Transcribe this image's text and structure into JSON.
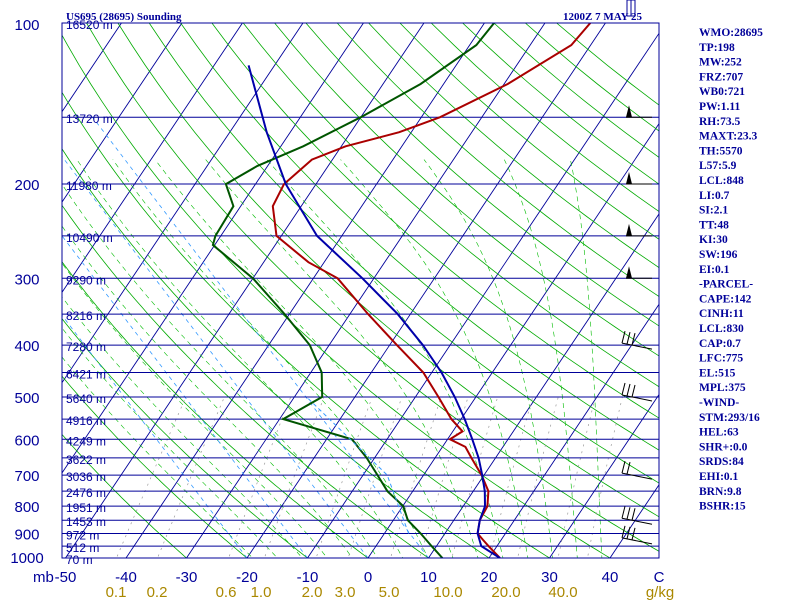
{
  "header": {
    "station": "US695 (28695) Sounding",
    "time": "1200Z  7 MAY 25"
  },
  "colors": {
    "frame": "#000099",
    "isobar": "#000099",
    "isotherm": "#000099",
    "dry_adiabat": "#00aa00",
    "moist_adiabat": "#00bb00",
    "mixing_ratio": "#999999",
    "temperature": "#aa0000",
    "dewpoint": "#005500",
    "parcel": "#0000aa",
    "moisture_label": "#aa8800",
    "wet_bulb": "#3399ff"
  },
  "chart_data": {
    "type": "skew-t",
    "x_axis": {
      "unit_label": "mb",
      "temperature_ticks": [
        "-50",
        "-40",
        "-30",
        "-20",
        "-10",
        "0",
        "10",
        "20",
        "30",
        "40",
        "C"
      ],
      "temperature_values": [
        -50,
        -40,
        -30,
        -20,
        -10,
        0,
        10,
        20,
        30,
        40
      ],
      "mixing_ratio_ticks": [
        "0.1",
        "0.2",
        "0.6",
        "1.0",
        "2.0",
        "3.0",
        "5.0",
        "10.0",
        "20.0",
        "40.0",
        "g/kg"
      ],
      "mixing_ratio_values": [
        0.1,
        0.2,
        0.6,
        1.0,
        2.0,
        3.0,
        5.0,
        10.0,
        20.0,
        40.0
      ]
    },
    "y_axis": {
      "pressure_ticks": [
        "100",
        "200",
        "300",
        "400",
        "500",
        "600",
        "700",
        "800",
        "900",
        "1000"
      ],
      "pressure_values": [
        100,
        200,
        300,
        400,
        500,
        600,
        700,
        800,
        900,
        1000
      ],
      "range": [
        100,
        1000
      ]
    },
    "levels": [
      {
        "p": 100,
        "height": "16520 m"
      },
      {
        "p": 150,
        "height": "13720 m"
      },
      {
        "p": 200,
        "height": "11980 m"
      },
      {
        "p": 250,
        "height": "10490 m"
      },
      {
        "p": 300,
        "height": "9290 m"
      },
      {
        "p": 350,
        "height": "8216 m"
      },
      {
        "p": 400,
        "height": "7280 m"
      },
      {
        "p": 450,
        "height": "6421 m"
      },
      {
        "p": 500,
        "height": "5640 m"
      },
      {
        "p": 550,
        "height": "4916 m"
      },
      {
        "p": 600,
        "height": "4249 m"
      },
      {
        "p": 650,
        "height": "3622 m"
      },
      {
        "p": 700,
        "height": "3036 m"
      },
      {
        "p": 750,
        "height": "2476 m"
      },
      {
        "p": 800,
        "height": "1951 m"
      },
      {
        "p": 850,
        "height": "1453 m"
      },
      {
        "p": 900,
        "height": "972 m"
      },
      {
        "p": 950,
        "height": "512 m"
      },
      {
        "p": 1000,
        "height": "70 m"
      }
    ],
    "series": [
      {
        "key": "temperature",
        "points": [
          [
            1000,
            21.8
          ],
          [
            950,
            18.6
          ],
          [
            925,
            17.0
          ],
          [
            900,
            15.4
          ],
          [
            850,
            14.3
          ],
          [
            800,
            14.0
          ],
          [
            750,
            12.5
          ],
          [
            700,
            9.6
          ],
          [
            650,
            6.0
          ],
          [
            620,
            3.8
          ],
          [
            600,
            0.4
          ],
          [
            580,
            1.6
          ],
          [
            550,
            -1.6
          ],
          [
            500,
            -6.2
          ],
          [
            450,
            -11.4
          ],
          [
            400,
            -18.8
          ],
          [
            350,
            -27.0
          ],
          [
            300,
            -36.0
          ],
          [
            280,
            -42.6
          ],
          [
            250,
            -50.8
          ],
          [
            220,
            -54.7
          ],
          [
            200,
            -55.3
          ],
          [
            180,
            -53.4
          ],
          [
            170,
            -49.3
          ],
          [
            160,
            -42.0
          ],
          [
            150,
            -36.9
          ],
          [
            130,
            -29.4
          ],
          [
            110,
            -23.2
          ],
          [
            100,
            -22.5
          ]
        ]
      },
      {
        "key": "dewpoint",
        "points": [
          [
            1000,
            12.3
          ],
          [
            950,
            9.2
          ],
          [
            900,
            6.0
          ],
          [
            850,
            2.4
          ],
          [
            800,
            0.1
          ],
          [
            750,
            -4.2
          ],
          [
            700,
            -7.6
          ],
          [
            650,
            -11.3
          ],
          [
            600,
            -15.8
          ],
          [
            550,
            -29.4
          ],
          [
            500,
            -25.4
          ],
          [
            450,
            -28.2
          ],
          [
            400,
            -33.2
          ],
          [
            350,
            -40.8
          ],
          [
            300,
            -50.0
          ],
          [
            260,
            -60.3
          ],
          [
            250,
            -60.9
          ],
          [
            220,
            -61.2
          ],
          [
            200,
            -64.9
          ],
          [
            185,
            -61.7
          ],
          [
            170,
            -56.3
          ],
          [
            150,
            -50.0
          ],
          [
            130,
            -43.8
          ],
          [
            110,
            -38.9
          ],
          [
            100,
            -38.4
          ]
        ]
      },
      {
        "key": "parcel",
        "points": [
          [
            1000,
            21.8
          ],
          [
            950,
            17.4
          ],
          [
            900,
            15.4
          ],
          [
            850,
            14.3
          ],
          [
            800,
            13.6
          ],
          [
            750,
            11.9
          ],
          [
            700,
            9.7
          ],
          [
            650,
            7.2
          ],
          [
            600,
            4.1
          ],
          [
            550,
            0.6
          ],
          [
            500,
            -3.5
          ],
          [
            450,
            -8.4
          ],
          [
            400,
            -14.5
          ],
          [
            350,
            -22.1
          ],
          [
            300,
            -31.9
          ],
          [
            250,
            -44.1
          ],
          [
            200,
            -55.0
          ],
          [
            160,
            -63.9
          ],
          [
            120,
            -74.3
          ]
        ]
      },
      {
        "key": "wet_bulb_900",
        "points": [
          [
            900,
            4.0
          ],
          [
            700,
            -6.0
          ],
          [
            500,
            -28.0
          ]
        ]
      }
    ],
    "winds": [
      {
        "p": 150,
        "kind": "pennant-barb"
      },
      {
        "p": 200,
        "kind": "pennant-barb"
      },
      {
        "p": 250,
        "kind": "pennant-barb"
      },
      {
        "p": 300,
        "kind": "pennant-only"
      },
      {
        "p": 400,
        "kind": "triple-barb"
      },
      {
        "p": 500,
        "kind": "triple-barb"
      },
      {
        "p": 700,
        "kind": "double-barb"
      },
      {
        "p": 850,
        "kind": "triple-barb"
      },
      {
        "p": 925,
        "kind": "triple-barb"
      }
    ]
  },
  "indices": [
    "WMO:28695",
    "TP:198",
    "MW:252",
    "FRZ:707",
    "WB0:721",
    "PW:1.11",
    "RH:73.5",
    "MAXT:23.3",
    "TH:5570",
    "L57:5.9",
    "LCL:848",
    "LI:0.7",
    "SI:2.1",
    "TT:48",
    "KI:30",
    "SW:196",
    "EI:0.1",
    "-PARCEL-",
    "CAPE:142",
    "CINH:11",
    "LCL:830",
    "CAP:0.7",
    "LFC:775",
    "EL:515",
    "MPL:375",
    "-WIND-",
    "STM:293/16",
    "HEL:63",
    "SHR+:0.0",
    "SRDS:84",
    "EHI:0.1",
    "BRN:9.8",
    "BSHR:15"
  ]
}
